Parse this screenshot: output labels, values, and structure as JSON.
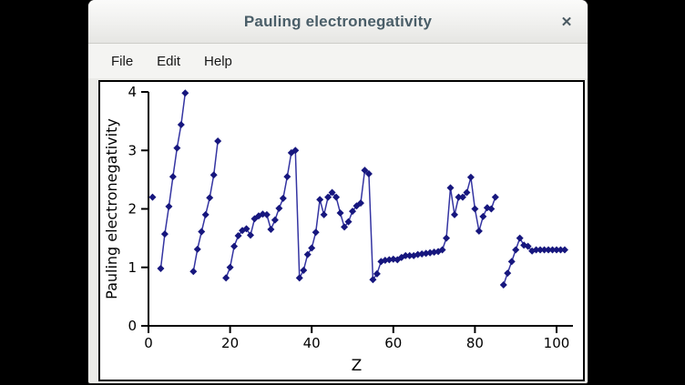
{
  "window": {
    "title": "Pauling electronegativity",
    "close_label": "✕"
  },
  "menu": {
    "items": [
      {
        "label": "File"
      },
      {
        "label": "Edit"
      },
      {
        "label": "Help"
      }
    ]
  },
  "colors": {
    "line": "#3434a2",
    "marker": "#17177e",
    "axis": "#000000",
    "title_text": "#4a5e68",
    "plot_bg": "#ffffff",
    "window_bg": "#ebebe8"
  },
  "chart_data": {
    "type": "line",
    "title": "",
    "xlabel": "Z",
    "ylabel": "Pauling electronegativity",
    "xlim": [
      0,
      103.5
    ],
    "ylim": [
      0,
      4
    ],
    "xticks": [
      0,
      20,
      40,
      60,
      80,
      100
    ],
    "yticks": [
      0,
      1,
      2,
      3,
      4
    ],
    "grid": false,
    "legend_position": "none",
    "marker": "diamond",
    "connect_rule": "consecutive-Z-only (gaps at He, Ne, Ar, Rn)",
    "series": [
      {
        "name": "Pauling electronegativity",
        "points": [
          [
            1,
            2.2
          ],
          [
            3,
            0.98
          ],
          [
            4,
            1.57
          ],
          [
            5,
            2.04
          ],
          [
            6,
            2.55
          ],
          [
            7,
            3.04
          ],
          [
            8,
            3.44
          ],
          [
            9,
            3.98
          ],
          [
            11,
            0.93
          ],
          [
            12,
            1.31
          ],
          [
            13,
            1.61
          ],
          [
            14,
            1.9
          ],
          [
            15,
            2.19
          ],
          [
            16,
            2.58
          ],
          [
            17,
            3.16
          ],
          [
            19,
            0.82
          ],
          [
            20,
            1.0
          ],
          [
            21,
            1.36
          ],
          [
            22,
            1.54
          ],
          [
            23,
            1.63
          ],
          [
            24,
            1.66
          ],
          [
            25,
            1.55
          ],
          [
            26,
            1.83
          ],
          [
            27,
            1.88
          ],
          [
            28,
            1.91
          ],
          [
            29,
            1.9
          ],
          [
            30,
            1.65
          ],
          [
            31,
            1.81
          ],
          [
            32,
            2.01
          ],
          [
            33,
            2.18
          ],
          [
            34,
            2.55
          ],
          [
            35,
            2.96
          ],
          [
            36,
            3.0
          ],
          [
            37,
            0.82
          ],
          [
            38,
            0.95
          ],
          [
            39,
            1.22
          ],
          [
            40,
            1.33
          ],
          [
            41,
            1.6
          ],
          [
            42,
            2.16
          ],
          [
            43,
            1.9
          ],
          [
            44,
            2.2
          ],
          [
            45,
            2.28
          ],
          [
            46,
            2.2
          ],
          [
            47,
            1.93
          ],
          [
            48,
            1.69
          ],
          [
            49,
            1.78
          ],
          [
            50,
            1.96
          ],
          [
            51,
            2.05
          ],
          [
            52,
            2.1
          ],
          [
            53,
            2.66
          ],
          [
            54,
            2.6
          ],
          [
            55,
            0.79
          ],
          [
            56,
            0.89
          ],
          [
            57,
            1.1
          ],
          [
            58,
            1.12
          ],
          [
            59,
            1.13
          ],
          [
            60,
            1.14
          ],
          [
            61,
            1.13
          ],
          [
            62,
            1.17
          ],
          [
            63,
            1.2
          ],
          [
            64,
            1.2
          ],
          [
            65,
            1.2
          ],
          [
            66,
            1.22
          ],
          [
            67,
            1.23
          ],
          [
            68,
            1.24
          ],
          [
            69,
            1.25
          ],
          [
            70,
            1.26
          ],
          [
            71,
            1.27
          ],
          [
            72,
            1.3
          ],
          [
            73,
            1.5
          ],
          [
            74,
            2.36
          ],
          [
            75,
            1.9
          ],
          [
            76,
            2.2
          ],
          [
            77,
            2.2
          ],
          [
            78,
            2.28
          ],
          [
            79,
            2.54
          ],
          [
            80,
            2.0
          ],
          [
            81,
            1.62
          ],
          [
            82,
            1.87
          ],
          [
            83,
            2.02
          ],
          [
            84,
            2.0
          ],
          [
            85,
            2.2
          ],
          [
            87,
            0.7
          ],
          [
            88,
            0.9
          ],
          [
            89,
            1.1
          ],
          [
            90,
            1.3
          ],
          [
            91,
            1.5
          ],
          [
            92,
            1.38
          ],
          [
            93,
            1.36
          ],
          [
            94,
            1.28
          ],
          [
            95,
            1.3
          ],
          [
            96,
            1.3
          ],
          [
            97,
            1.3
          ],
          [
            98,
            1.3
          ],
          [
            99,
            1.3
          ],
          [
            100,
            1.3
          ],
          [
            101,
            1.3
          ],
          [
            102,
            1.3
          ]
        ]
      }
    ]
  }
}
